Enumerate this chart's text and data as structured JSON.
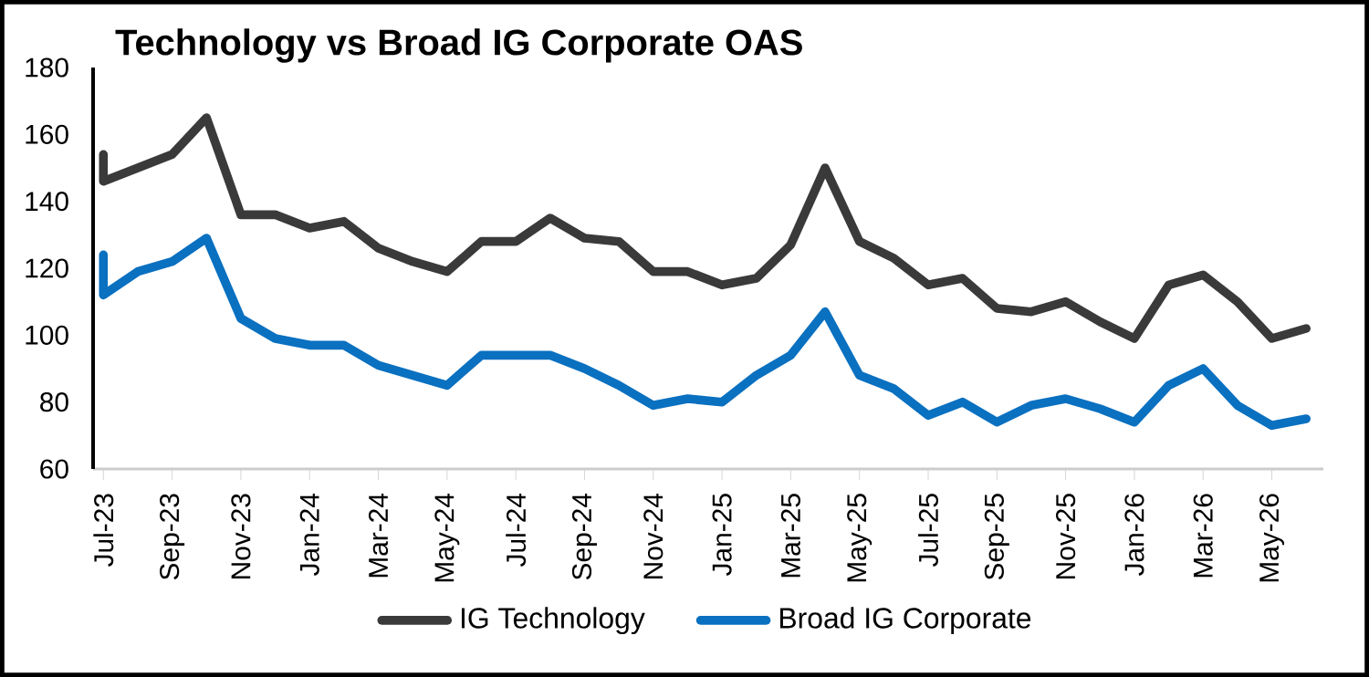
{
  "chart_data": {
    "type": "line",
    "title": "Technology vs Broad IG Corporate OAS",
    "x": [
      "2023-07-01",
      "2023-07-01",
      "2023-08",
      "2023-09",
      "2023-10",
      "2023-11",
      "2023-12",
      "2024-01",
      "2024-02",
      "2024-03",
      "2024-04",
      "2024-05",
      "2024-06",
      "2024-07",
      "2024-08",
      "2024-09",
      "2024-10",
      "2024-11",
      "2024-12",
      "2025-01",
      "2025-02",
      "2025-03",
      "2025-04",
      "2025-05",
      "2025-06",
      "2025-07",
      "2025-08",
      "2025-09",
      "2025-10",
      "2025-11",
      "2025-12",
      "2026-01",
      "2026-02",
      "2026-03",
      "2026-04",
      "2026-05",
      "2026-06"
    ],
    "series": [
      {
        "name": "IG Technology",
        "color": "#3a3a3a",
        "values": [
          154,
          146,
          150,
          154,
          165,
          136,
          136,
          132,
          134,
          126,
          122,
          119,
          128,
          128,
          135,
          129,
          128,
          119,
          119,
          115,
          117,
          127,
          150,
          128,
          123,
          115,
          117,
          108,
          107,
          110,
          104,
          99,
          115,
          118,
          110,
          99,
          102
        ]
      },
      {
        "name": "Broad IG Corporate",
        "color": "#0a70c0",
        "values": [
          124,
          112,
          119,
          122,
          129,
          105,
          99,
          97,
          97,
          91,
          88,
          85,
          94,
          94,
          94,
          90,
          85,
          79,
          81,
          80,
          88,
          94,
          107,
          88,
          84,
          76,
          80,
          74,
          79,
          81,
          78,
          74,
          85,
          90,
          79,
          73,
          75
        ]
      }
    ],
    "xlim": [
      "2023-06-22",
      "2026-06-16"
    ],
    "xticks": [
      {
        "value": "2023-07",
        "label": "Jul-23"
      },
      {
        "value": "2023-09",
        "label": "Sep-23"
      },
      {
        "value": "2023-11",
        "label": "Nov-23"
      },
      {
        "value": "2024-01",
        "label": "Jan-24"
      },
      {
        "value": "2024-03",
        "label": "Mar-24"
      },
      {
        "value": "2024-05",
        "label": "May-24"
      },
      {
        "value": "2024-07",
        "label": "Jul-24"
      },
      {
        "value": "2024-09",
        "label": "Sep-24"
      },
      {
        "value": "2024-11",
        "label": "Nov-24"
      },
      {
        "value": "2025-01",
        "label": "Jan-25"
      },
      {
        "value": "2025-03",
        "label": "Mar-25"
      },
      {
        "value": "2025-05",
        "label": "May-25"
      },
      {
        "value": "2025-07",
        "label": "Jul-25"
      },
      {
        "value": "2025-09",
        "label": "Sep-25"
      },
      {
        "value": "2025-11",
        "label": "Nov-25"
      },
      {
        "value": "2026-01",
        "label": "Jan-26"
      },
      {
        "value": "2026-03",
        "label": "Mar-26"
      },
      {
        "value": "2026-05",
        "label": "May-26"
      }
    ],
    "ylim": [
      60,
      180
    ],
    "yticks": [
      60,
      80,
      100,
      120,
      140,
      160,
      180
    ],
    "grid": false,
    "legend": "bottom",
    "line_style": "solid"
  }
}
